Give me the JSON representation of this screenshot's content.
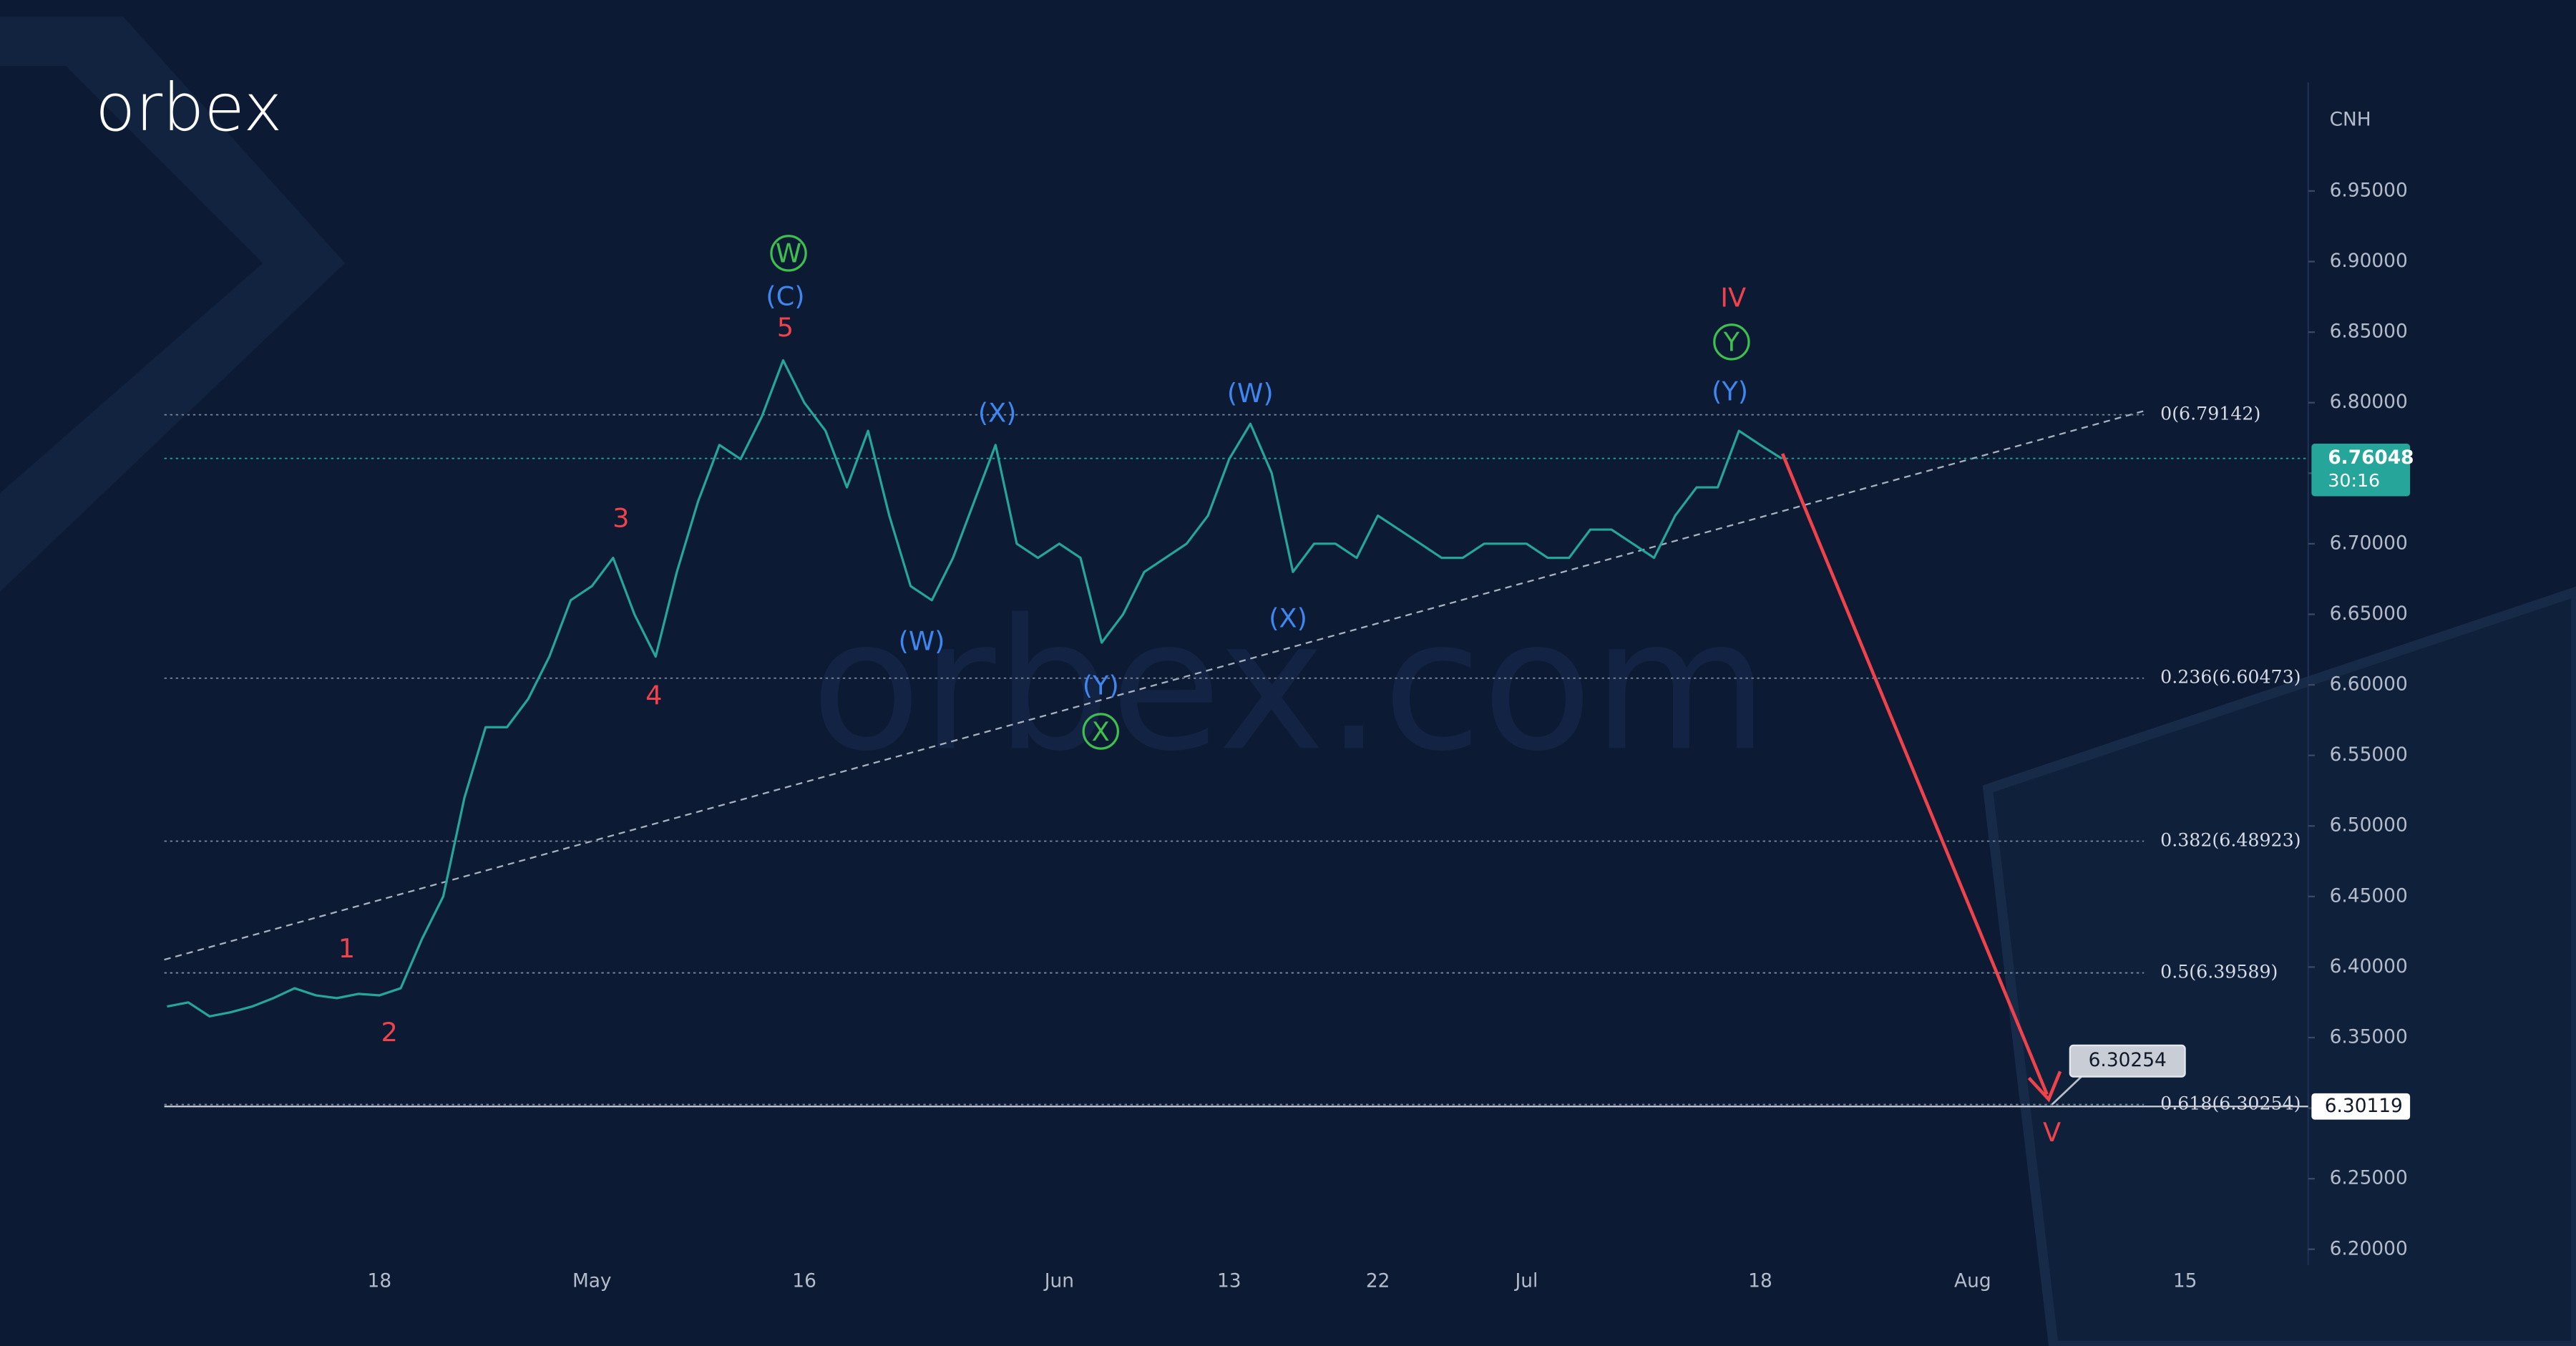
{
  "logo": "orbex",
  "watermark": "orbex.com",
  "chart_data": {
    "type": "line",
    "currency": "CNH",
    "categories": [
      null,
      null,
      null,
      null,
      null,
      null,
      null,
      null,
      null,
      null,
      "18",
      null,
      null,
      null,
      null,
      null,
      null,
      null,
      null,
      null,
      "May",
      null,
      null,
      null,
      null,
      null,
      null,
      null,
      null,
      null,
      "16",
      null,
      null,
      null,
      null,
      null,
      null,
      null,
      null,
      null,
      null,
      null,
      "Jun",
      null,
      null,
      null,
      null,
      null,
      null,
      null,
      "13",
      null,
      null,
      null,
      null,
      null,
      null,
      "22",
      null,
      null,
      null,
      null,
      null,
      null,
      "Jul",
      null,
      null,
      null,
      null,
      null,
      null,
      null,
      null,
      null,
      null,
      "18",
      null,
      null,
      null,
      null,
      null,
      null,
      null,
      null,
      null,
      "Aug",
      null,
      null,
      null,
      null,
      null,
      null,
      null,
      null,
      null,
      "15",
      null,
      null,
      null,
      null,
      null
    ],
    "series": [
      {
        "name": "CNH",
        "color": "#26a69a",
        "values": [
          6.372,
          6.375,
          6.365,
          6.368,
          6.372,
          6.378,
          6.385,
          6.38,
          6.378,
          6.381,
          6.38,
          6.385,
          6.42,
          6.45,
          6.52,
          6.57,
          6.57,
          6.59,
          6.62,
          6.66,
          6.67,
          6.69,
          6.65,
          6.62,
          6.68,
          6.73,
          6.77,
          6.76,
          6.79,
          6.83,
          6.8,
          6.78,
          6.74,
          6.78,
          6.72,
          6.67,
          6.66,
          6.69,
          6.73,
          6.77,
          6.7,
          6.69,
          6.7,
          6.69,
          6.63,
          6.65,
          6.68,
          6.69,
          6.7,
          6.72,
          6.76,
          6.785,
          6.75,
          6.68,
          6.7,
          6.7,
          6.69,
          6.72,
          6.71,
          6.7,
          6.69,
          6.69,
          6.7,
          6.7,
          6.7,
          6.69,
          6.69,
          6.71,
          6.71,
          6.7,
          6.69,
          6.72,
          6.74,
          6.74,
          6.78,
          6.77,
          6.76048,
          null,
          null,
          null,
          null,
          null,
          null,
          null,
          null,
          null,
          null,
          null,
          null,
          null,
          null,
          null,
          null,
          null,
          null,
          null,
          null,
          null,
          null,
          null,
          null
        ]
      }
    ],
    "ylim": [
      6.177,
      7.027
    ],
    "yticks": [
      {
        "value": 6.2,
        "label": "6.20000"
      },
      {
        "value": 6.25,
        "label": "6.25000"
      },
      {
        "value": 6.3,
        "label": "6.30000"
      },
      {
        "value": 6.35,
        "label": "6.35000"
      },
      {
        "value": 6.4,
        "label": "6.40000"
      },
      {
        "value": 6.45,
        "label": "6.45000"
      },
      {
        "value": 6.5,
        "label": "6.50000"
      },
      {
        "value": 6.55,
        "label": "6.55000"
      },
      {
        "value": 6.6,
        "label": "6.60000"
      },
      {
        "value": 6.65,
        "label": "6.65000"
      },
      {
        "value": 6.7,
        "label": "6.70000"
      },
      {
        "value": 6.75,
        "label": "6.75000"
      },
      {
        "value": 6.8,
        "label": "6.80000"
      },
      {
        "value": 6.85,
        "label": "6.85000"
      },
      {
        "value": 6.9,
        "label": "6.90000"
      },
      {
        "value": 6.95,
        "label": "6.95000"
      }
    ],
    "fib_levels": [
      {
        "value": 6.79142,
        "label": "0(6.79142)"
      },
      {
        "value": 6.60473,
        "label": "0.236(6.60473)"
      },
      {
        "value": 6.48923,
        "label": "0.382(6.48923)"
      },
      {
        "value": 6.39589,
        "label": "0.5(6.39589)"
      },
      {
        "value": 6.30254,
        "label": "0.618(6.30254)"
      }
    ],
    "last_price": 6.76048,
    "countdown": "30:16",
    "marker_price": 6.30119,
    "target": 6.30254,
    "annotations": [
      {
        "text": "1",
        "color": "#f0424b"
      },
      {
        "text": "2",
        "color": "#f0424b"
      },
      {
        "text": "3",
        "color": "#f0424b"
      },
      {
        "text": "4",
        "color": "#f0424b"
      },
      {
        "text": "5",
        "color": "#f0424b"
      },
      {
        "text": "IV",
        "color": "#f0424b"
      },
      {
        "text": "V",
        "color": "#f0424b"
      },
      {
        "text": "(C)",
        "color": "#3f86ef"
      },
      {
        "text": "(X)",
        "color": "#3f86ef"
      },
      {
        "text": "(W)",
        "color": "#3f86ef"
      },
      {
        "text": "(Y)",
        "color": "#3f86ef"
      },
      {
        "text": "(W)",
        "color": "#3f86ef"
      },
      {
        "text": "(X)",
        "color": "#3f86ef"
      },
      {
        "text": "(Y)",
        "color": "#3f86ef"
      },
      {
        "text": "W",
        "color": "#3fbf4f",
        "circled": true
      },
      {
        "text": "X",
        "color": "#3fbf4f",
        "circled": true
      },
      {
        "text": "Y",
        "color": "#3fbf4f",
        "circled": true
      }
    ]
  }
}
